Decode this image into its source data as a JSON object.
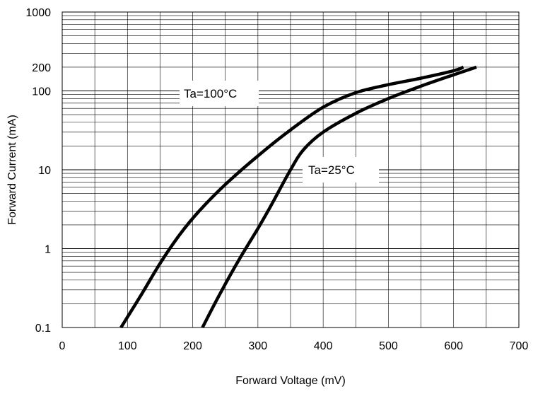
{
  "chart_data": {
    "type": "line",
    "title": "",
    "xlabel": "Forward Voltage (mV)",
    "ylabel": "Forward Current (mA)",
    "x_scale": "linear",
    "y_scale": "log",
    "xlim": [
      0,
      700
    ],
    "ylim": [
      0.1,
      1000
    ],
    "x_ticks": [
      0,
      100,
      200,
      300,
      400,
      500,
      600,
      700
    ],
    "x_tick_labels": [
      "0",
      "100",
      "200",
      "300",
      "400",
      "500",
      "600",
      "700"
    ],
    "y_ticks": [
      0.1,
      1,
      10,
      100,
      200,
      1000
    ],
    "y_tick_labels": [
      "0.1",
      "1",
      "10",
      "100",
      "200",
      "1000"
    ],
    "grid": true,
    "line_color": "#000000",
    "grid_color": "#000000",
    "series": [
      {
        "name": "Ta=100°C",
        "x": [
          90,
          120,
          150,
          180,
          210,
          250,
          300,
          350,
          400,
          450,
          500,
          550,
          600,
          615
        ],
        "y": [
          0.1,
          0.25,
          0.65,
          1.5,
          3.0,
          6.5,
          15,
          32,
          62,
          95,
          120,
          145,
          180,
          200
        ]
      },
      {
        "name": "Ta=25°C",
        "x": [
          215,
          240,
          270,
          300,
          320,
          350,
          370,
          400,
          450,
          500,
          550,
          600,
          635
        ],
        "y": [
          0.1,
          0.25,
          0.7,
          1.8,
          3.5,
          10,
          18,
          30,
          52,
          80,
          115,
          160,
          200
        ]
      }
    ],
    "annotations": [
      {
        "text": "Ta=100°C",
        "series": 0
      },
      {
        "text": "Ta=25°C",
        "series": 1
      }
    ]
  }
}
